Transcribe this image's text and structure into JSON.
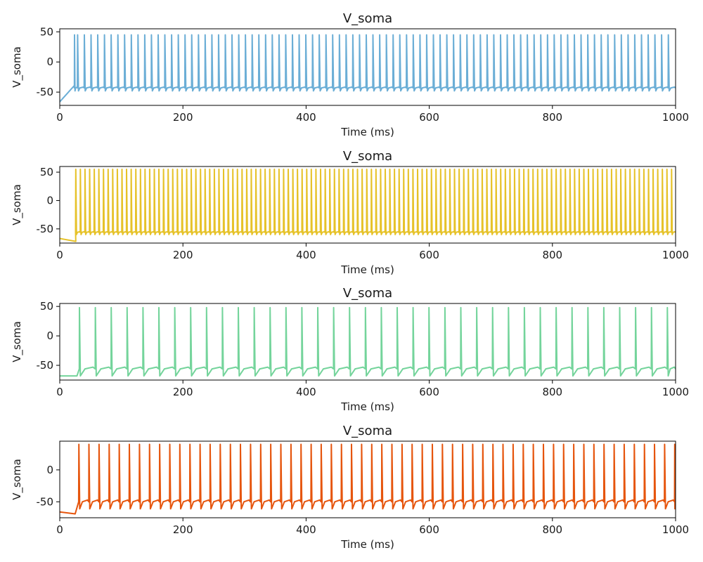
{
  "chart_data": [
    {
      "type": "line",
      "title": "V_soma",
      "xlabel": "Time (ms)",
      "ylabel": "V_soma",
      "xlim": [
        0,
        1000
      ],
      "ylim": [
        -72,
        55
      ],
      "xticks": [
        0,
        200,
        400,
        600,
        800,
        1000
      ],
      "yticks": [
        -50,
        0,
        50
      ],
      "color": "#6baed6",
      "grid": false,
      "trace": {
        "v_start": -66,
        "v_onset": -40,
        "onset_ms": 23,
        "first_spike_ms": 24,
        "burst_ms": [
          29
        ],
        "period_ms": 10.9,
        "trough": -48,
        "peak": 45,
        "reset_mid": -43
      }
    },
    {
      "type": "line",
      "title": "V_soma",
      "xlabel": "Time (ms)",
      "ylabel": "V_soma",
      "xlim": [
        0,
        1000
      ],
      "ylim": [
        -75,
        60
      ],
      "xticks": [
        0,
        200,
        400,
        600,
        800,
        1000
      ],
      "yticks": [
        -50,
        0,
        50
      ],
      "color": "#e6c229",
      "grid": false,
      "trace": {
        "v_start": -67,
        "v_onset": -72,
        "onset_ms": 26,
        "first_spike_ms": 26,
        "burst_ms": [],
        "period_ms": 7.5,
        "trough": -60,
        "peak": 55,
        "reset_mid": -56
      }
    },
    {
      "type": "line",
      "title": "V_soma",
      "xlabel": "Time (ms)",
      "ylabel": "V_soma",
      "xlim": [
        0,
        1000
      ],
      "ylim": [
        -75,
        55
      ],
      "xticks": [
        0,
        200,
        400,
        600,
        800,
        1000
      ],
      "yticks": [
        -50,
        0,
        50
      ],
      "color": "#74d49b",
      "grid": false,
      "trace": {
        "v_start": -68,
        "v_onset": -68,
        "onset_ms": 28,
        "first_spike_ms": 32,
        "burst_ms": [],
        "period_ms": 25.8,
        "trough": -68,
        "peak": 48,
        "reset_mid": -56
      }
    },
    {
      "type": "line",
      "title": "V_soma",
      "xlabel": "Time (ms)",
      "ylabel": "V_soma",
      "xlim": [
        0,
        1000
      ],
      "ylim": [
        -75,
        45
      ],
      "xticks": [
        0,
        200,
        400,
        600,
        800,
        1000
      ],
      "yticks": [
        -50,
        0
      ],
      "color": "#e6550d",
      "grid": false,
      "trace": {
        "v_start": -66,
        "v_onset": -69,
        "onset_ms": 25,
        "first_spike_ms": 31,
        "burst_ms": [],
        "period_ms": 16.4,
        "trough": -61,
        "peak": 40,
        "reset_mid": -50
      }
    }
  ]
}
